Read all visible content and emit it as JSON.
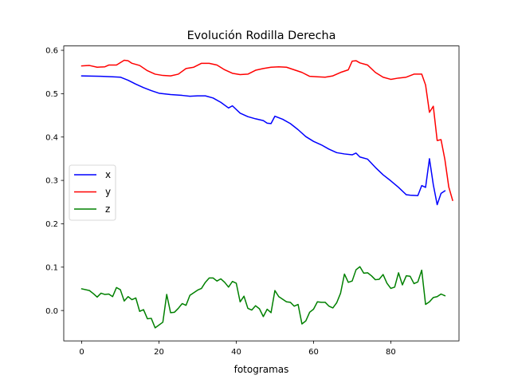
{
  "chart_data": {
    "type": "line",
    "title": "Evolución Rodilla Derecha",
    "xlabel": "fotogramas",
    "ylabel": "",
    "xlim": [
      -4.65,
      97.65
    ],
    "ylim": [
      -0.07,
      0.61
    ],
    "x_ticks": [
      0,
      20,
      40,
      60,
      80
    ],
    "y_ticks": [
      0.0,
      0.1,
      0.2,
      0.3,
      0.4,
      0.5,
      0.6
    ],
    "x_tick_labels": [
      "0",
      "20",
      "40",
      "60",
      "80"
    ],
    "y_tick_labels": [
      "0.0",
      "0.1",
      "0.2",
      "0.3",
      "0.4",
      "0.5",
      "0.6"
    ],
    "grid": false,
    "legend_position": "center-left",
    "series": [
      {
        "name": "x",
        "color": "#0000ff",
        "points": [
          [
            0,
            0.541
          ],
          [
            5,
            0.54
          ],
          [
            8,
            0.539
          ],
          [
            10,
            0.538
          ],
          [
            12,
            0.531
          ],
          [
            14,
            0.522
          ],
          [
            16,
            0.514
          ],
          [
            18,
            0.507
          ],
          [
            20,
            0.501
          ],
          [
            23,
            0.498
          ],
          [
            26,
            0.496
          ],
          [
            28,
            0.494
          ],
          [
            30,
            0.495
          ],
          [
            32,
            0.495
          ],
          [
            34,
            0.49
          ],
          [
            36,
            0.48
          ],
          [
            38,
            0.467
          ],
          [
            39,
            0.472
          ],
          [
            41,
            0.455
          ],
          [
            43,
            0.447
          ],
          [
            45,
            0.442
          ],
          [
            47,
            0.438
          ],
          [
            48,
            0.432
          ],
          [
            49,
            0.431
          ],
          [
            50,
            0.448
          ],
          [
            52,
            0.441
          ],
          [
            54,
            0.431
          ],
          [
            56,
            0.417
          ],
          [
            58,
            0.401
          ],
          [
            60,
            0.39
          ],
          [
            62,
            0.382
          ],
          [
            64,
            0.372
          ],
          [
            66,
            0.364
          ],
          [
            68,
            0.361
          ],
          [
            70,
            0.359
          ],
          [
            71,
            0.363
          ],
          [
            72,
            0.354
          ],
          [
            74,
            0.349
          ],
          [
            76,
            0.33
          ],
          [
            78,
            0.313
          ],
          [
            80,
            0.299
          ],
          [
            82,
            0.284
          ],
          [
            84,
            0.267
          ],
          [
            85,
            0.266
          ],
          [
            87,
            0.265
          ],
          [
            88,
            0.288
          ],
          [
            89,
            0.284
          ],
          [
            90,
            0.35
          ],
          [
            91,
            0.29
          ],
          [
            92,
            0.244
          ],
          [
            93,
            0.27
          ],
          [
            94,
            0.276
          ]
        ]
      },
      {
        "name": "y",
        "color": "#ff0000",
        "points": [
          [
            0,
            0.564
          ],
          [
            2,
            0.565
          ],
          [
            4,
            0.561
          ],
          [
            6,
            0.562
          ],
          [
            7,
            0.566
          ],
          [
            9,
            0.566
          ],
          [
            11,
            0.577
          ],
          [
            12,
            0.576
          ],
          [
            13,
            0.57
          ],
          [
            15,
            0.565
          ],
          [
            17,
            0.553
          ],
          [
            19,
            0.545
          ],
          [
            21,
            0.542
          ],
          [
            23,
            0.541
          ],
          [
            25,
            0.545
          ],
          [
            27,
            0.558
          ],
          [
            29,
            0.561
          ],
          [
            31,
            0.57
          ],
          [
            33,
            0.57
          ],
          [
            35,
            0.566
          ],
          [
            37,
            0.555
          ],
          [
            39,
            0.547
          ],
          [
            41,
            0.544
          ],
          [
            43,
            0.545
          ],
          [
            45,
            0.554
          ],
          [
            47,
            0.558
          ],
          [
            49,
            0.561
          ],
          [
            51,
            0.562
          ],
          [
            53,
            0.561
          ],
          [
            55,
            0.555
          ],
          [
            57,
            0.549
          ],
          [
            59,
            0.54
          ],
          [
            61,
            0.539
          ],
          [
            63,
            0.538
          ],
          [
            65,
            0.541
          ],
          [
            67,
            0.549
          ],
          [
            69,
            0.555
          ],
          [
            70,
            0.575
          ],
          [
            71,
            0.576
          ],
          [
            72,
            0.571
          ],
          [
            74,
            0.566
          ],
          [
            76,
            0.549
          ],
          [
            78,
            0.538
          ],
          [
            80,
            0.533
          ],
          [
            82,
            0.536
          ],
          [
            84,
            0.538
          ],
          [
            86,
            0.545
          ],
          [
            88,
            0.545
          ],
          [
            89,
            0.52
          ],
          [
            90,
            0.457
          ],
          [
            91,
            0.471
          ],
          [
            92,
            0.392
          ],
          [
            93,
            0.394
          ],
          [
            94,
            0.348
          ],
          [
            95,
            0.285
          ],
          [
            96,
            0.254
          ]
        ]
      },
      {
        "name": "z",
        "color": "#008000",
        "points": [
          [
            0,
            0.05
          ],
          [
            2,
            0.046
          ],
          [
            3,
            0.039
          ],
          [
            4,
            0.031
          ],
          [
            5,
            0.04
          ],
          [
            6,
            0.037
          ],
          [
            7,
            0.038
          ],
          [
            8,
            0.032
          ],
          [
            9,
            0.053
          ],
          [
            10,
            0.048
          ],
          [
            11,
            0.022
          ],
          [
            12,
            0.032
          ],
          [
            13,
            0.025
          ],
          [
            14,
            0.029
          ],
          [
            15,
            -0.002
          ],
          [
            16,
            0.002
          ],
          [
            17,
            -0.019
          ],
          [
            18,
            -0.018
          ],
          [
            19,
            -0.04
          ],
          [
            21,
            -0.027
          ],
          [
            22,
            0.037
          ],
          [
            23,
            -0.005
          ],
          [
            24,
            -0.004
          ],
          [
            25,
            0.005
          ],
          [
            26,
            0.016
          ],
          [
            27,
            0.012
          ],
          [
            28,
            0.035
          ],
          [
            29,
            0.041
          ],
          [
            30,
            0.047
          ],
          [
            31,
            0.051
          ],
          [
            32,
            0.065
          ],
          [
            33,
            0.075
          ],
          [
            34,
            0.075
          ],
          [
            35,
            0.068
          ],
          [
            36,
            0.073
          ],
          [
            37,
            0.065
          ],
          [
            38,
            0.054
          ],
          [
            39,
            0.067
          ],
          [
            40,
            0.063
          ],
          [
            41,
            0.02
          ],
          [
            42,
            0.033
          ],
          [
            43,
            0.005
          ],
          [
            44,
            0.001
          ],
          [
            45,
            0.011
          ],
          [
            46,
            0.004
          ],
          [
            47,
            -0.014
          ],
          [
            48,
            0.003
          ],
          [
            49,
            -0.005
          ],
          [
            50,
            0.046
          ],
          [
            51,
            0.032
          ],
          [
            52,
            0.026
          ],
          [
            53,
            0.02
          ],
          [
            54,
            0.019
          ],
          [
            55,
            0.01
          ],
          [
            56,
            0.014
          ],
          [
            57,
            -0.031
          ],
          [
            58,
            -0.024
          ],
          [
            59,
            -0.004
          ],
          [
            60,
            0.003
          ],
          [
            61,
            0.02
          ],
          [
            62,
            0.019
          ],
          [
            63,
            0.019
          ],
          [
            64,
            0.01
          ],
          [
            65,
            0.006
          ],
          [
            66,
            0.018
          ],
          [
            67,
            0.04
          ],
          [
            68,
            0.084
          ],
          [
            69,
            0.065
          ],
          [
            70,
            0.068
          ],
          [
            71,
            0.094
          ],
          [
            72,
            0.101
          ],
          [
            73,
            0.086
          ],
          [
            74,
            0.087
          ],
          [
            75,
            0.08
          ],
          [
            76,
            0.071
          ],
          [
            77,
            0.072
          ],
          [
            78,
            0.083
          ],
          [
            79,
            0.063
          ],
          [
            80,
            0.051
          ],
          [
            81,
            0.054
          ],
          [
            82,
            0.087
          ],
          [
            83,
            0.059
          ],
          [
            84,
            0.08
          ],
          [
            85,
            0.079
          ],
          [
            86,
            0.062
          ],
          [
            87,
            0.066
          ],
          [
            88,
            0.093
          ],
          [
            89,
            0.014
          ],
          [
            90,
            0.02
          ],
          [
            91,
            0.03
          ],
          [
            92,
            0.032
          ],
          [
            93,
            0.038
          ],
          [
            94,
            0.034
          ]
        ]
      }
    ]
  }
}
